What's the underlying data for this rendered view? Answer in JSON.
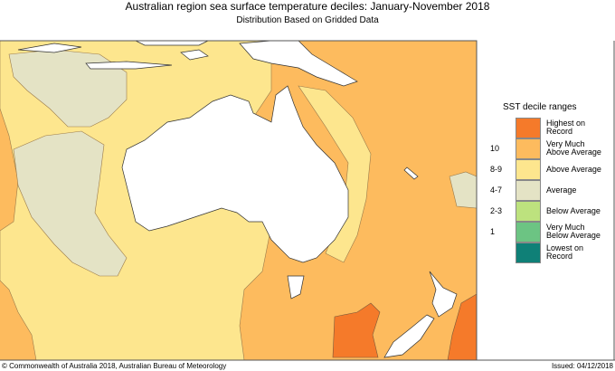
{
  "title": "Australian region sea surface temperature deciles:  January-November 2018",
  "subtitle": "Distribution Based on Gridded Data",
  "footer": {
    "copyright": "© Commonwealth of Australia 2018, Australian Bureau of Meteorology",
    "issued": "Issued: 04/12/2018"
  },
  "legend": {
    "title": "SST decile ranges",
    "items": [
      {
        "range": "",
        "label1": "Highest on",
        "label2": "Record",
        "color": "#f57a2a"
      },
      {
        "range": "10",
        "label1": "Very Much",
        "label2": "Above Average",
        "color": "#fdbb5e"
      },
      {
        "range": "8-9",
        "label1": "Above Average",
        "label2": "",
        "color": "#fde68e"
      },
      {
        "range": "4-7",
        "label1": "Average",
        "label2": "",
        "color": "#e4e3c5"
      },
      {
        "range": "2-3",
        "label1": "Below Average",
        "label2": "",
        "color": "#bde27e"
      },
      {
        "range": "1",
        "label1": "Very Much",
        "label2": "Below Average",
        "color": "#6cc483"
      },
      {
        "range": "",
        "label1": "Lowest on",
        "label2": "Record",
        "color": "#0f8077"
      }
    ]
  },
  "colors": {
    "land": "#ffffff",
    "border": "#7a5a3a"
  }
}
